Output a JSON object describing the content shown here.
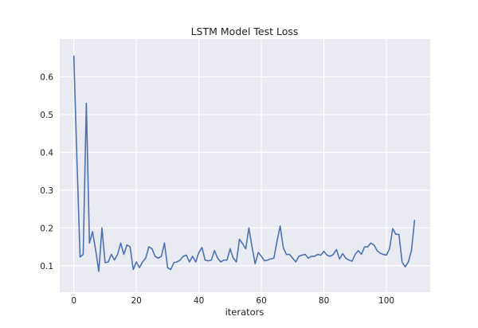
{
  "chart_data": {
    "type": "line",
    "title": "LSTM Model Test Loss",
    "xlabel": "iterators",
    "ylabel": "",
    "xlim": [
      -4.5,
      114
    ],
    "ylim": [
      0.03,
      0.7
    ],
    "x_ticks": [
      0,
      20,
      40,
      60,
      80,
      100
    ],
    "y_ticks": [
      0.1,
      0.2,
      0.3,
      0.4,
      0.5,
      0.6
    ],
    "x_tick_labels": [
      "0",
      "20",
      "40",
      "60",
      "80",
      "100"
    ],
    "y_tick_labels": [
      "0.1",
      "0.2",
      "0.3",
      "0.4",
      "0.5",
      "0.6"
    ],
    "grid": true,
    "series": [
      {
        "color": "#4c72b0",
        "x": [
          0,
          1,
          2,
          3,
          4,
          5,
          6,
          7,
          8,
          9,
          10,
          11,
          12,
          13,
          14,
          15,
          16,
          17,
          18,
          19,
          20,
          21,
          22,
          23,
          24,
          25,
          26,
          27,
          28,
          29,
          30,
          31,
          32,
          33,
          34,
          35,
          36,
          37,
          38,
          39,
          40,
          41,
          42,
          43,
          44,
          45,
          46,
          47,
          48,
          49,
          50,
          51,
          52,
          53,
          54,
          55,
          56,
          57,
          58,
          59,
          60,
          61,
          62,
          63,
          64,
          65,
          66,
          67,
          68,
          69,
          70,
          71,
          72,
          73,
          74,
          75,
          76,
          77,
          78,
          79,
          80,
          81,
          82,
          83,
          84,
          85,
          86,
          87,
          88,
          89,
          90,
          91,
          92,
          93,
          94,
          95,
          96,
          97,
          98,
          99,
          100,
          101,
          102,
          103,
          104,
          105,
          106,
          107,
          108,
          109
        ],
        "y": [
          0.655,
          0.38,
          0.123,
          0.13,
          0.53,
          0.16,
          0.19,
          0.14,
          0.085,
          0.2,
          0.108,
          0.11,
          0.13,
          0.115,
          0.13,
          0.16,
          0.13,
          0.155,
          0.15,
          0.09,
          0.11,
          0.095,
          0.11,
          0.12,
          0.15,
          0.145,
          0.125,
          0.12,
          0.125,
          0.16,
          0.095,
          0.09,
          0.108,
          0.11,
          0.115,
          0.125,
          0.128,
          0.11,
          0.125,
          0.11,
          0.135,
          0.148,
          0.115,
          0.113,
          0.115,
          0.14,
          0.12,
          0.11,
          0.115,
          0.115,
          0.145,
          0.12,
          0.11,
          0.17,
          0.158,
          0.145,
          0.2,
          0.15,
          0.105,
          0.135,
          0.125,
          0.113,
          0.115,
          0.118,
          0.12,
          0.165,
          0.205,
          0.148,
          0.13,
          0.13,
          0.12,
          0.11,
          0.125,
          0.128,
          0.13,
          0.12,
          0.125,
          0.125,
          0.13,
          0.128,
          0.138,
          0.128,
          0.125,
          0.13,
          0.143,
          0.118,
          0.132,
          0.12,
          0.115,
          0.112,
          0.13,
          0.14,
          0.13,
          0.15,
          0.15,
          0.16,
          0.155,
          0.14,
          0.133,
          0.13,
          0.128,
          0.145,
          0.198,
          0.183,
          0.183,
          0.11,
          0.097,
          0.11,
          0.14,
          0.22
        ]
      }
    ]
  }
}
